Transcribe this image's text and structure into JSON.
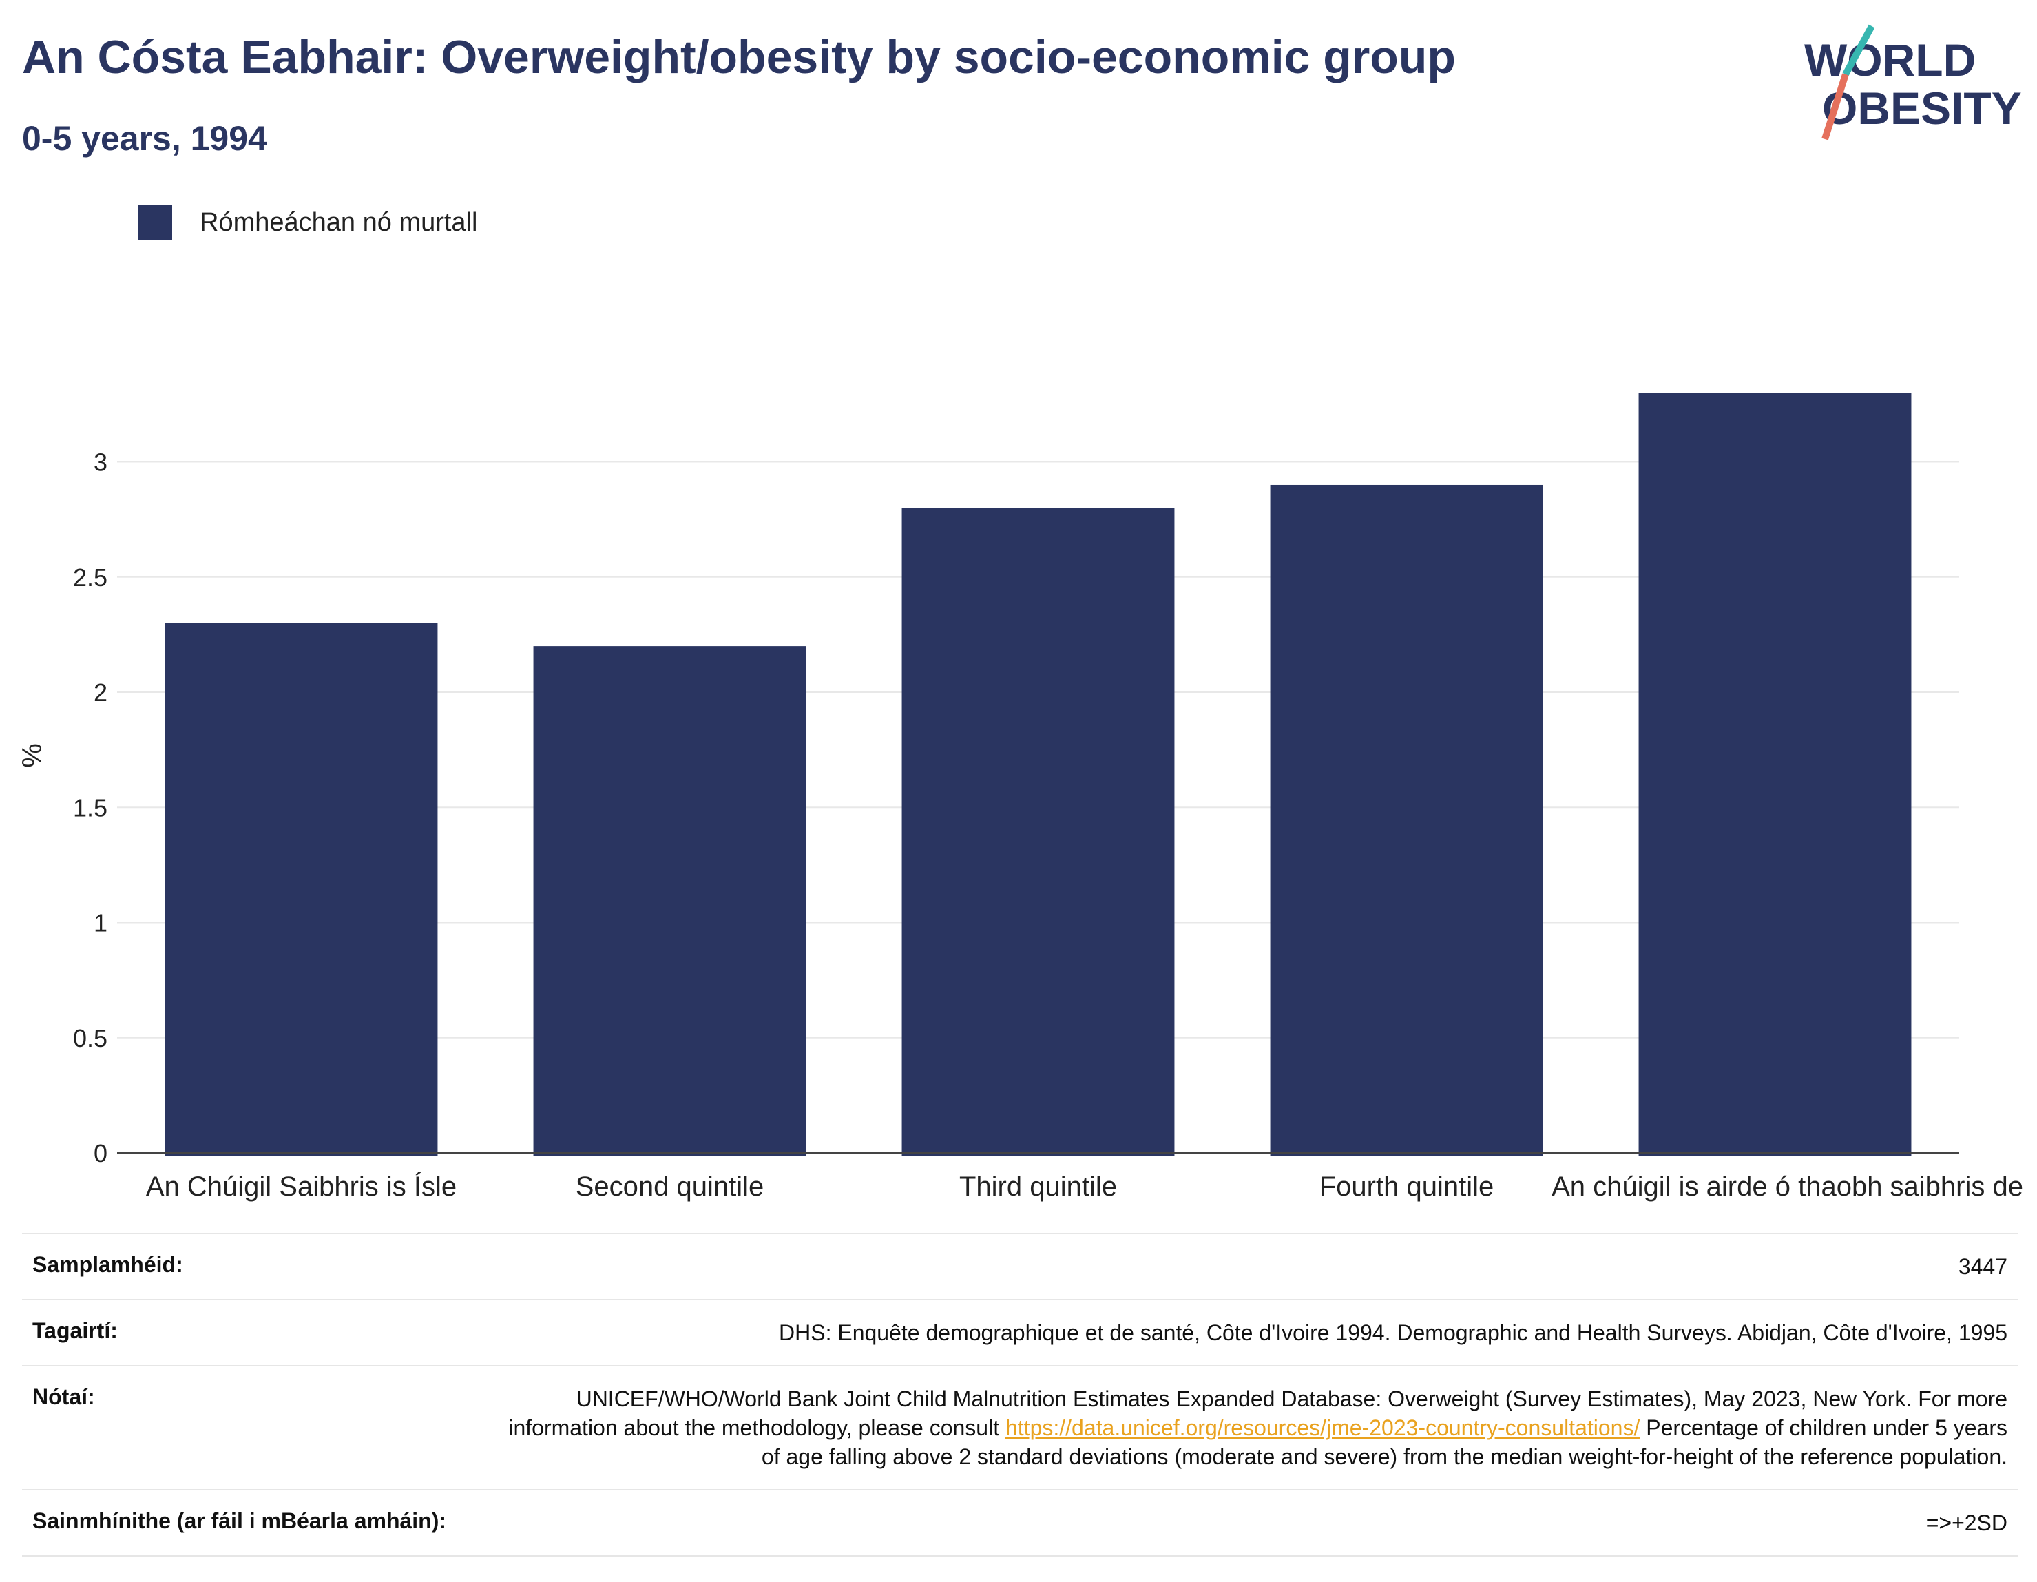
{
  "header": {
    "title": "An Cósta Eabhair: Overweight/obesity by socio-economic group",
    "subtitle": "0-5 years, 1994"
  },
  "logo": {
    "line1": "WORLD",
    "line2": "OBESITY",
    "accent_colors": [
      "#37b6b0",
      "#e5705c"
    ]
  },
  "legend": {
    "label": "Rómheáchan nó murtall",
    "color": "#2a3561"
  },
  "chart_data": {
    "type": "bar",
    "categories": [
      "An Chúigil Saibhris is Ísle",
      "Second quintile",
      "Third quintile",
      "Fourth quintile",
      "An chúigil is airde ó thaobh saibhris de"
    ],
    "series": [
      {
        "name": "Rómheáchan nó murtall",
        "values": [
          2.3,
          2.2,
          2.8,
          2.9,
          3.3
        ],
        "color": "#2a3561"
      }
    ],
    "ylabel": "%",
    "ylim": [
      0,
      3.45
    ],
    "yticks": [
      0,
      0.5,
      1,
      1.5,
      2,
      2.5,
      3
    ],
    "ytick_labels": [
      "0",
      "0.5",
      "1",
      "1.5",
      "2",
      "2.5",
      "3"
    ],
    "grid": true,
    "legend_position": "top-left"
  },
  "meta": {
    "sample": {
      "key": "Samplamhéid:",
      "value": "3447"
    },
    "references": {
      "key": "Tagairtí:",
      "value": "DHS: Enquête demographique et de santé, Côte d'Ivoire 1994. Demographic and Health Surveys. Abidjan, Côte d'Ivoire, 1995"
    },
    "notes": {
      "key": "Nótaí:",
      "text_before": "UNICEF/WHO/World Bank Joint Child Malnutrition Estimates Expanded Database: Overweight (Survey Estimates), May 2023, New York. For more information about the methodology, please consult",
      "link": "https://data.unicef.org/resources/jme-2023-country-consultations/",
      "text_after": "Percentage of children under 5 years of age falling above 2 standard deviations (moderate and severe) from the median weight-for-height of the reference population."
    },
    "definitions": {
      "key": "Sainmhínithe (ar fáil i mBéarla amháin):",
      "value": "=>+2SD"
    }
  }
}
